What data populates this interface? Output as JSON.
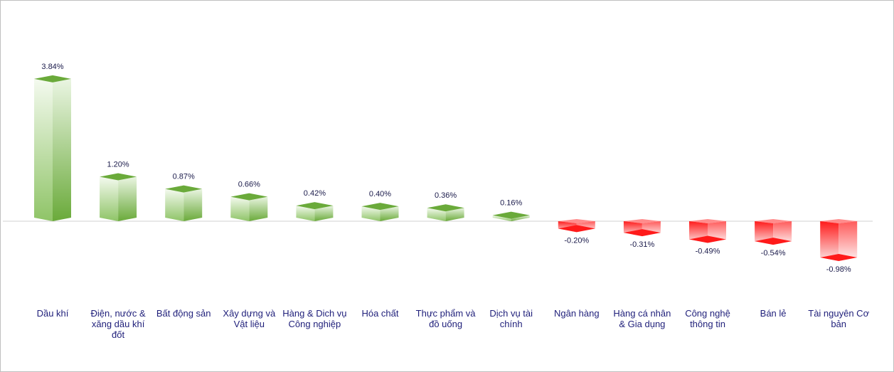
{
  "chart_data": {
    "type": "bar",
    "categories": [
      "Dầu khí",
      "Điện, nước & xăng dầu khí đốt",
      "Bất động sản",
      "Xây dựng và Vật liệu",
      "Hàng & Dich vụ Công nghiệp",
      "Hóa chất",
      "Thực phẩm và đồ uống",
      "Dịch vụ tài chính",
      "Ngân hàng",
      "Hàng cá nhân & Gia dụng",
      "Công nghệ thông tin",
      "Bán lẻ",
      "Tài nguyên Cơ bản"
    ],
    "values": [
      3.84,
      1.2,
      0.87,
      0.66,
      0.42,
      0.4,
      0.36,
      0.16,
      -0.2,
      -0.31,
      -0.49,
      -0.54,
      -0.98
    ],
    "labels": [
      "3.84%",
      "1.20%",
      "0.87%",
      "0.66%",
      "0.42%",
      "0.40%",
      "0.36%",
      "0.16%",
      "-0.20%",
      "-0.31%",
      "-0.49%",
      "-0.54%",
      "-0.98%"
    ],
    "title": "",
    "xlabel": "",
    "ylabel": "",
    "ylim": [
      -0.98,
      3.84
    ],
    "grid": false,
    "legend": "none",
    "colors": {
      "positive_dark": "#6aaa3a",
      "positive_light": "#eaf5e2",
      "negative_dark": "#ff1a1a",
      "negative_light": "#fbe3e3",
      "axis": "#d0d0d0",
      "value_text": "#1a1a4a",
      "category_text": "#1f1f7a"
    }
  }
}
